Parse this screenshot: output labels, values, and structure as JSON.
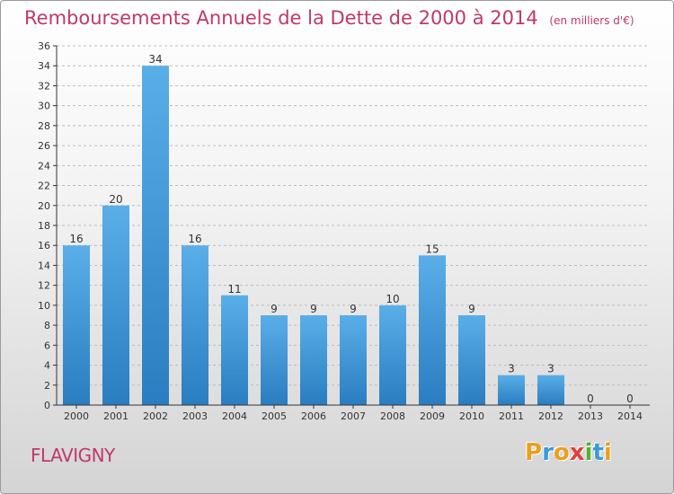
{
  "colors": {
    "title": "#c0386a",
    "bar_top": "#5aaee8",
    "bar_bottom": "#2a7dc0",
    "axis": "#333333",
    "grid": "#bbbbbb"
  },
  "chart_data": {
    "type": "bar",
    "title": "Remboursements Annuels de la Dette de 2000 à 2014",
    "subtitle": "(en milliers d'€)",
    "categories": [
      "2000",
      "2001",
      "2002",
      "2003",
      "2004",
      "2005",
      "2006",
      "2007",
      "2008",
      "2009",
      "2010",
      "2011",
      "2012",
      "2013",
      "2014"
    ],
    "values": [
      16,
      20,
      34,
      16,
      11,
      9,
      9,
      9,
      10,
      15,
      9,
      3,
      3,
      0,
      0
    ],
    "ylim": [
      0,
      36
    ],
    "yticks": [
      0,
      2,
      4,
      6,
      8,
      10,
      12,
      14,
      16,
      18,
      20,
      22,
      24,
      26,
      28,
      30,
      32,
      34,
      36
    ],
    "grid": "horizontal dashed",
    "data_labels": true
  },
  "footer": {
    "city": "FLAVIGNY",
    "logo_letters": [
      "P",
      "r",
      "o",
      "x",
      "i",
      "t",
      "i"
    ],
    "logo_colors": [
      "#e8a020",
      "#3a9ad8",
      "#e8a020",
      "#e04040",
      "#58b030",
      "#3a9ad8",
      "#e8a020"
    ]
  }
}
